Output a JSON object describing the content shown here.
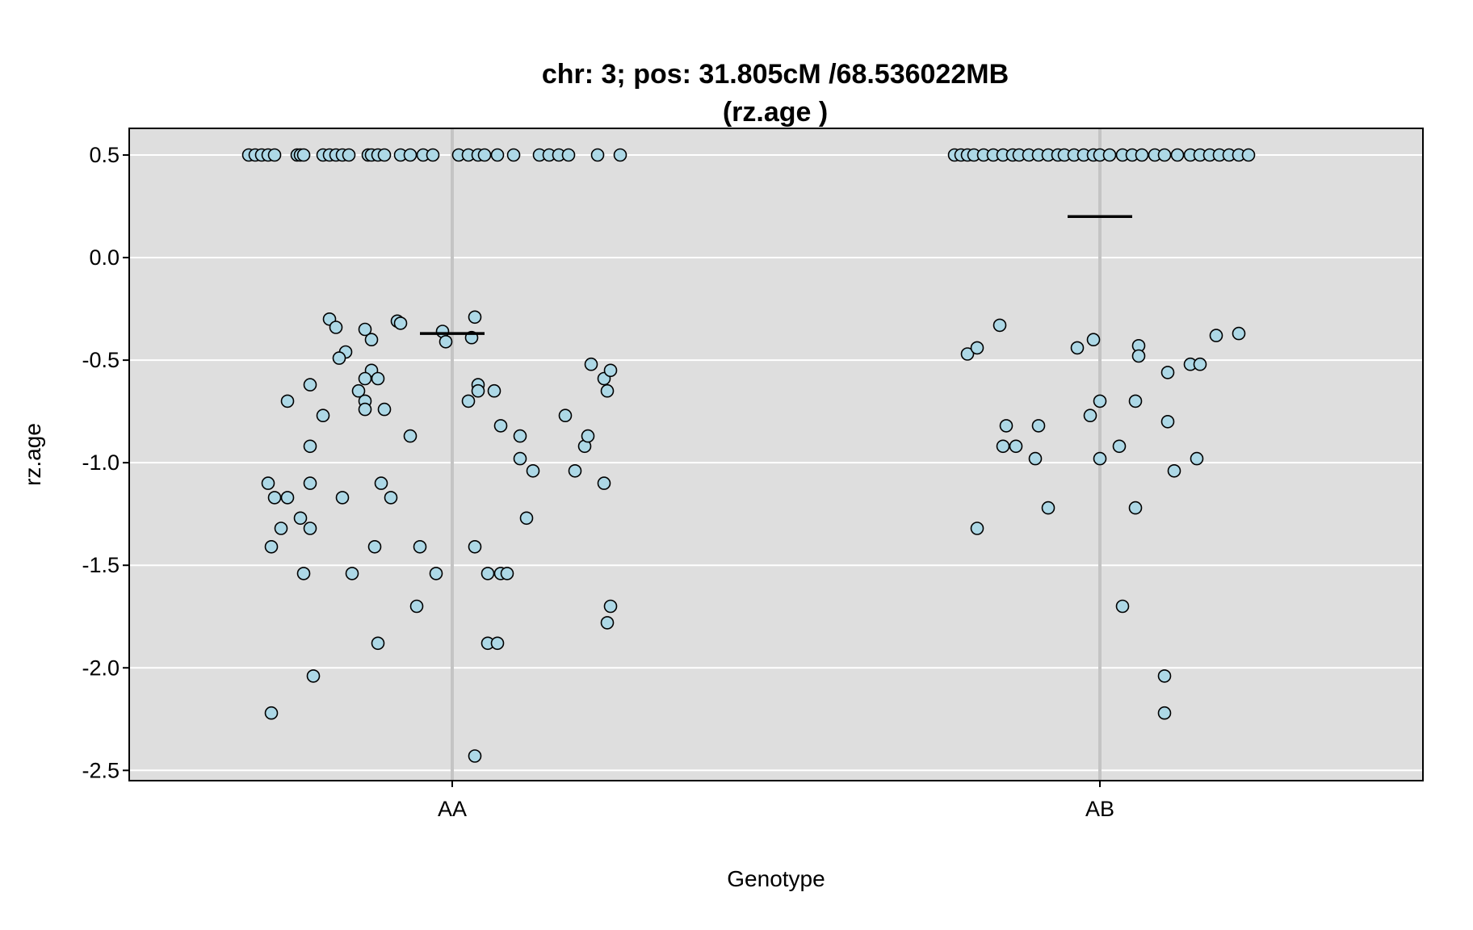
{
  "chart_data": {
    "type": "scatter",
    "title_line1": "chr: 3; pos: 31.805cM /68.536022MB",
    "title_line2": "(rz.age )",
    "xlabel": "Genotype",
    "ylabel": "rz.age",
    "categories": [
      "AA",
      "AB"
    ],
    "ylim": [
      -2.55,
      0.63
    ],
    "yticks": [
      0.5,
      0.0,
      -0.5,
      -1.0,
      -1.5,
      -2.0,
      -2.5
    ],
    "ytick_labels": [
      "0.5",
      "0.0",
      "-0.5",
      "-1.0",
      "-1.5",
      "-2.0",
      "-2.5"
    ],
    "grid": true,
    "colors": {
      "panel": "#dedede",
      "grid": "#ffffff",
      "group_line": "#c4c4c4",
      "point_fill": "#add8e6",
      "point_stroke": "#000000",
      "mean_line": "#000000"
    },
    "series": [
      {
        "category": "AA",
        "mean": -0.37,
        "points": [
          [
            -0.63,
            0.5
          ],
          [
            -0.61,
            0.5
          ],
          [
            -0.59,
            0.5
          ],
          [
            -0.57,
            0.5
          ],
          [
            -0.55,
            0.5
          ],
          [
            -0.48,
            0.5
          ],
          [
            -0.47,
            0.5
          ],
          [
            -0.46,
            0.5
          ],
          [
            -0.4,
            0.5
          ],
          [
            -0.38,
            0.5
          ],
          [
            -0.36,
            0.5
          ],
          [
            -0.34,
            0.5
          ],
          [
            -0.32,
            0.5
          ],
          [
            -0.26,
            0.5
          ],
          [
            -0.25,
            0.5
          ],
          [
            -0.23,
            0.5
          ],
          [
            -0.21,
            0.5
          ],
          [
            -0.16,
            0.5
          ],
          [
            -0.13,
            0.5
          ],
          [
            -0.09,
            0.5
          ],
          [
            -0.06,
            0.5
          ],
          [
            0.02,
            0.5
          ],
          [
            0.05,
            0.5
          ],
          [
            0.08,
            0.5
          ],
          [
            0.1,
            0.5
          ],
          [
            0.14,
            0.5
          ],
          [
            0.19,
            0.5
          ],
          [
            0.27,
            0.5
          ],
          [
            0.3,
            0.5
          ],
          [
            0.33,
            0.5
          ],
          [
            0.36,
            0.5
          ],
          [
            0.45,
            0.5
          ],
          [
            0.52,
            0.5
          ],
          [
            -0.38,
            -0.3
          ],
          [
            -0.36,
            -0.34
          ],
          [
            -0.27,
            -0.35
          ],
          [
            -0.25,
            -0.4
          ],
          [
            -0.33,
            -0.46
          ],
          [
            -0.35,
            -0.49
          ],
          [
            -0.25,
            -0.55
          ],
          [
            -0.23,
            -0.59
          ],
          [
            -0.27,
            -0.59
          ],
          [
            -0.44,
            -0.62
          ],
          [
            -0.29,
            -0.65
          ],
          [
            -0.51,
            -0.7
          ],
          [
            -0.27,
            -0.7
          ],
          [
            -0.27,
            -0.74
          ],
          [
            -0.21,
            -0.74
          ],
          [
            -0.4,
            -0.77
          ],
          [
            -0.44,
            -0.92
          ],
          [
            -0.13,
            -0.87
          ],
          [
            -0.57,
            -1.1
          ],
          [
            -0.44,
            -1.1
          ],
          [
            -0.22,
            -1.1
          ],
          [
            -0.55,
            -1.17
          ],
          [
            -0.51,
            -1.17
          ],
          [
            -0.34,
            -1.17
          ],
          [
            -0.19,
            -1.17
          ],
          [
            -0.47,
            -1.27
          ],
          [
            -0.53,
            -1.32
          ],
          [
            -0.44,
            -1.32
          ],
          [
            -0.56,
            -1.41
          ],
          [
            -0.24,
            -1.41
          ],
          [
            -0.46,
            -1.54
          ],
          [
            -0.31,
            -1.54
          ],
          [
            -0.1,
            -1.41
          ],
          [
            -0.05,
            -1.54
          ],
          [
            -0.11,
            -1.7
          ],
          [
            -0.23,
            -1.88
          ],
          [
            -0.43,
            -2.04
          ],
          [
            -0.56,
            -2.22
          ],
          [
            -0.17,
            -0.31
          ],
          [
            -0.16,
            -0.32
          ],
          [
            -0.03,
            -0.36
          ],
          [
            -0.02,
            -0.41
          ],
          [
            0.07,
            -0.29
          ],
          [
            0.06,
            -0.39
          ],
          [
            0.08,
            -0.62
          ],
          [
            0.08,
            -0.65
          ],
          [
            0.05,
            -0.7
          ],
          [
            0.13,
            -0.65
          ],
          [
            0.15,
            -0.82
          ],
          [
            0.21,
            -0.87
          ],
          [
            0.21,
            -0.98
          ],
          [
            0.25,
            -1.04
          ],
          [
            0.23,
            -1.27
          ],
          [
            0.07,
            -1.41
          ],
          [
            0.11,
            -1.54
          ],
          [
            0.15,
            -1.54
          ],
          [
            0.17,
            -1.54
          ],
          [
            0.11,
            -1.88
          ],
          [
            0.14,
            -1.88
          ],
          [
            0.07,
            -2.43
          ],
          [
            0.35,
            -0.77
          ],
          [
            0.38,
            -1.04
          ],
          [
            0.41,
            -0.92
          ],
          [
            0.42,
            -0.87
          ],
          [
            0.47,
            -1.1
          ],
          [
            0.47,
            -0.59
          ],
          [
            0.48,
            -0.65
          ],
          [
            0.49,
            -0.55
          ],
          [
            0.43,
            -0.52
          ],
          [
            0.49,
            -1.7
          ],
          [
            0.48,
            -1.78
          ]
        ]
      },
      {
        "category": "AB",
        "mean": 0.2,
        "points": [
          [
            -0.45,
            0.5
          ],
          [
            -0.43,
            0.5
          ],
          [
            -0.41,
            0.5
          ],
          [
            -0.39,
            0.5
          ],
          [
            -0.36,
            0.5
          ],
          [
            -0.33,
            0.5
          ],
          [
            -0.3,
            0.5
          ],
          [
            -0.27,
            0.5
          ],
          [
            -0.25,
            0.5
          ],
          [
            -0.22,
            0.5
          ],
          [
            -0.19,
            0.5
          ],
          [
            -0.16,
            0.5
          ],
          [
            -0.13,
            0.5
          ],
          [
            -0.11,
            0.5
          ],
          [
            -0.08,
            0.5
          ],
          [
            -0.05,
            0.5
          ],
          [
            -0.02,
            0.5
          ],
          [
            0.0,
            0.5
          ],
          [
            0.03,
            0.5
          ],
          [
            0.07,
            0.5
          ],
          [
            0.1,
            0.5
          ],
          [
            0.13,
            0.5
          ],
          [
            0.17,
            0.5
          ],
          [
            0.2,
            0.5
          ],
          [
            0.24,
            0.5
          ],
          [
            0.28,
            0.5
          ],
          [
            0.31,
            0.5
          ],
          [
            0.34,
            0.5
          ],
          [
            0.37,
            0.5
          ],
          [
            0.4,
            0.5
          ],
          [
            0.43,
            0.5
          ],
          [
            0.46,
            0.5
          ],
          [
            -0.41,
            -0.47
          ],
          [
            -0.38,
            -0.44
          ],
          [
            -0.31,
            -0.33
          ],
          [
            -0.29,
            -0.82
          ],
          [
            -0.3,
            -0.92
          ],
          [
            -0.26,
            -0.92
          ],
          [
            -0.19,
            -0.82
          ],
          [
            -0.2,
            -0.98
          ],
          [
            -0.16,
            -1.22
          ],
          [
            -0.38,
            -1.32
          ],
          [
            -0.07,
            -0.44
          ],
          [
            -0.02,
            -0.4
          ],
          [
            -0.03,
            -0.77
          ],
          [
            0.0,
            -0.7
          ],
          [
            0.0,
            -0.98
          ],
          [
            0.06,
            -0.92
          ],
          [
            0.07,
            -1.7
          ],
          [
            0.12,
            -0.43
          ],
          [
            0.12,
            -0.48
          ],
          [
            0.11,
            -0.7
          ],
          [
            0.11,
            -1.22
          ],
          [
            0.21,
            -0.56
          ],
          [
            0.21,
            -0.8
          ],
          [
            0.23,
            -1.04
          ],
          [
            0.2,
            -2.04
          ],
          [
            0.2,
            -2.22
          ],
          [
            0.28,
            -0.52
          ],
          [
            0.3,
            -0.98
          ],
          [
            0.31,
            -0.52
          ],
          [
            0.36,
            -0.38
          ],
          [
            0.43,
            -0.37
          ]
        ]
      }
    ]
  }
}
